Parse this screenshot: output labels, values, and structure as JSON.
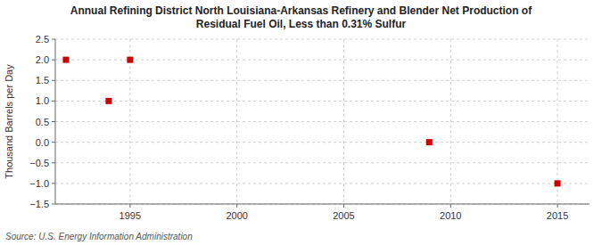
{
  "chart_data": {
    "type": "scatter",
    "title": "Annual Refining District North Louisiana-Arkansas Refinery and Blender Net Production of",
    "subtitle": "Residual Fuel Oil, Less than 0.31% Sulfur",
    "y_label": "Thousand Barrels per Day",
    "source": "Source: U.S. Energy Information Administration",
    "x": [
      1992,
      1994,
      1995,
      2009,
      2015
    ],
    "values": [
      2.0,
      1.0,
      2.0,
      0.0,
      -1.0
    ],
    "color": "#cc0000",
    "marker": "square",
    "xlim": [
      1991.5,
      2016.5
    ],
    "ylim": [
      -1.5,
      2.5
    ],
    "xticks": [
      1995,
      2000,
      2005,
      2010,
      2015
    ],
    "yticks": [
      {
        "value": -1.5,
        "label": "−1.5"
      },
      {
        "value": -1.0,
        "label": "−1.0"
      },
      {
        "value": -0.5,
        "label": "−0.5"
      },
      {
        "value": 0.0,
        "label": "0.0"
      },
      0.5,
      {
        "value": 1.0,
        "label": "1.0"
      },
      1.5,
      {
        "value": 2.0,
        "label": "2.0"
      },
      2.5
    ],
    "grid": true
  }
}
